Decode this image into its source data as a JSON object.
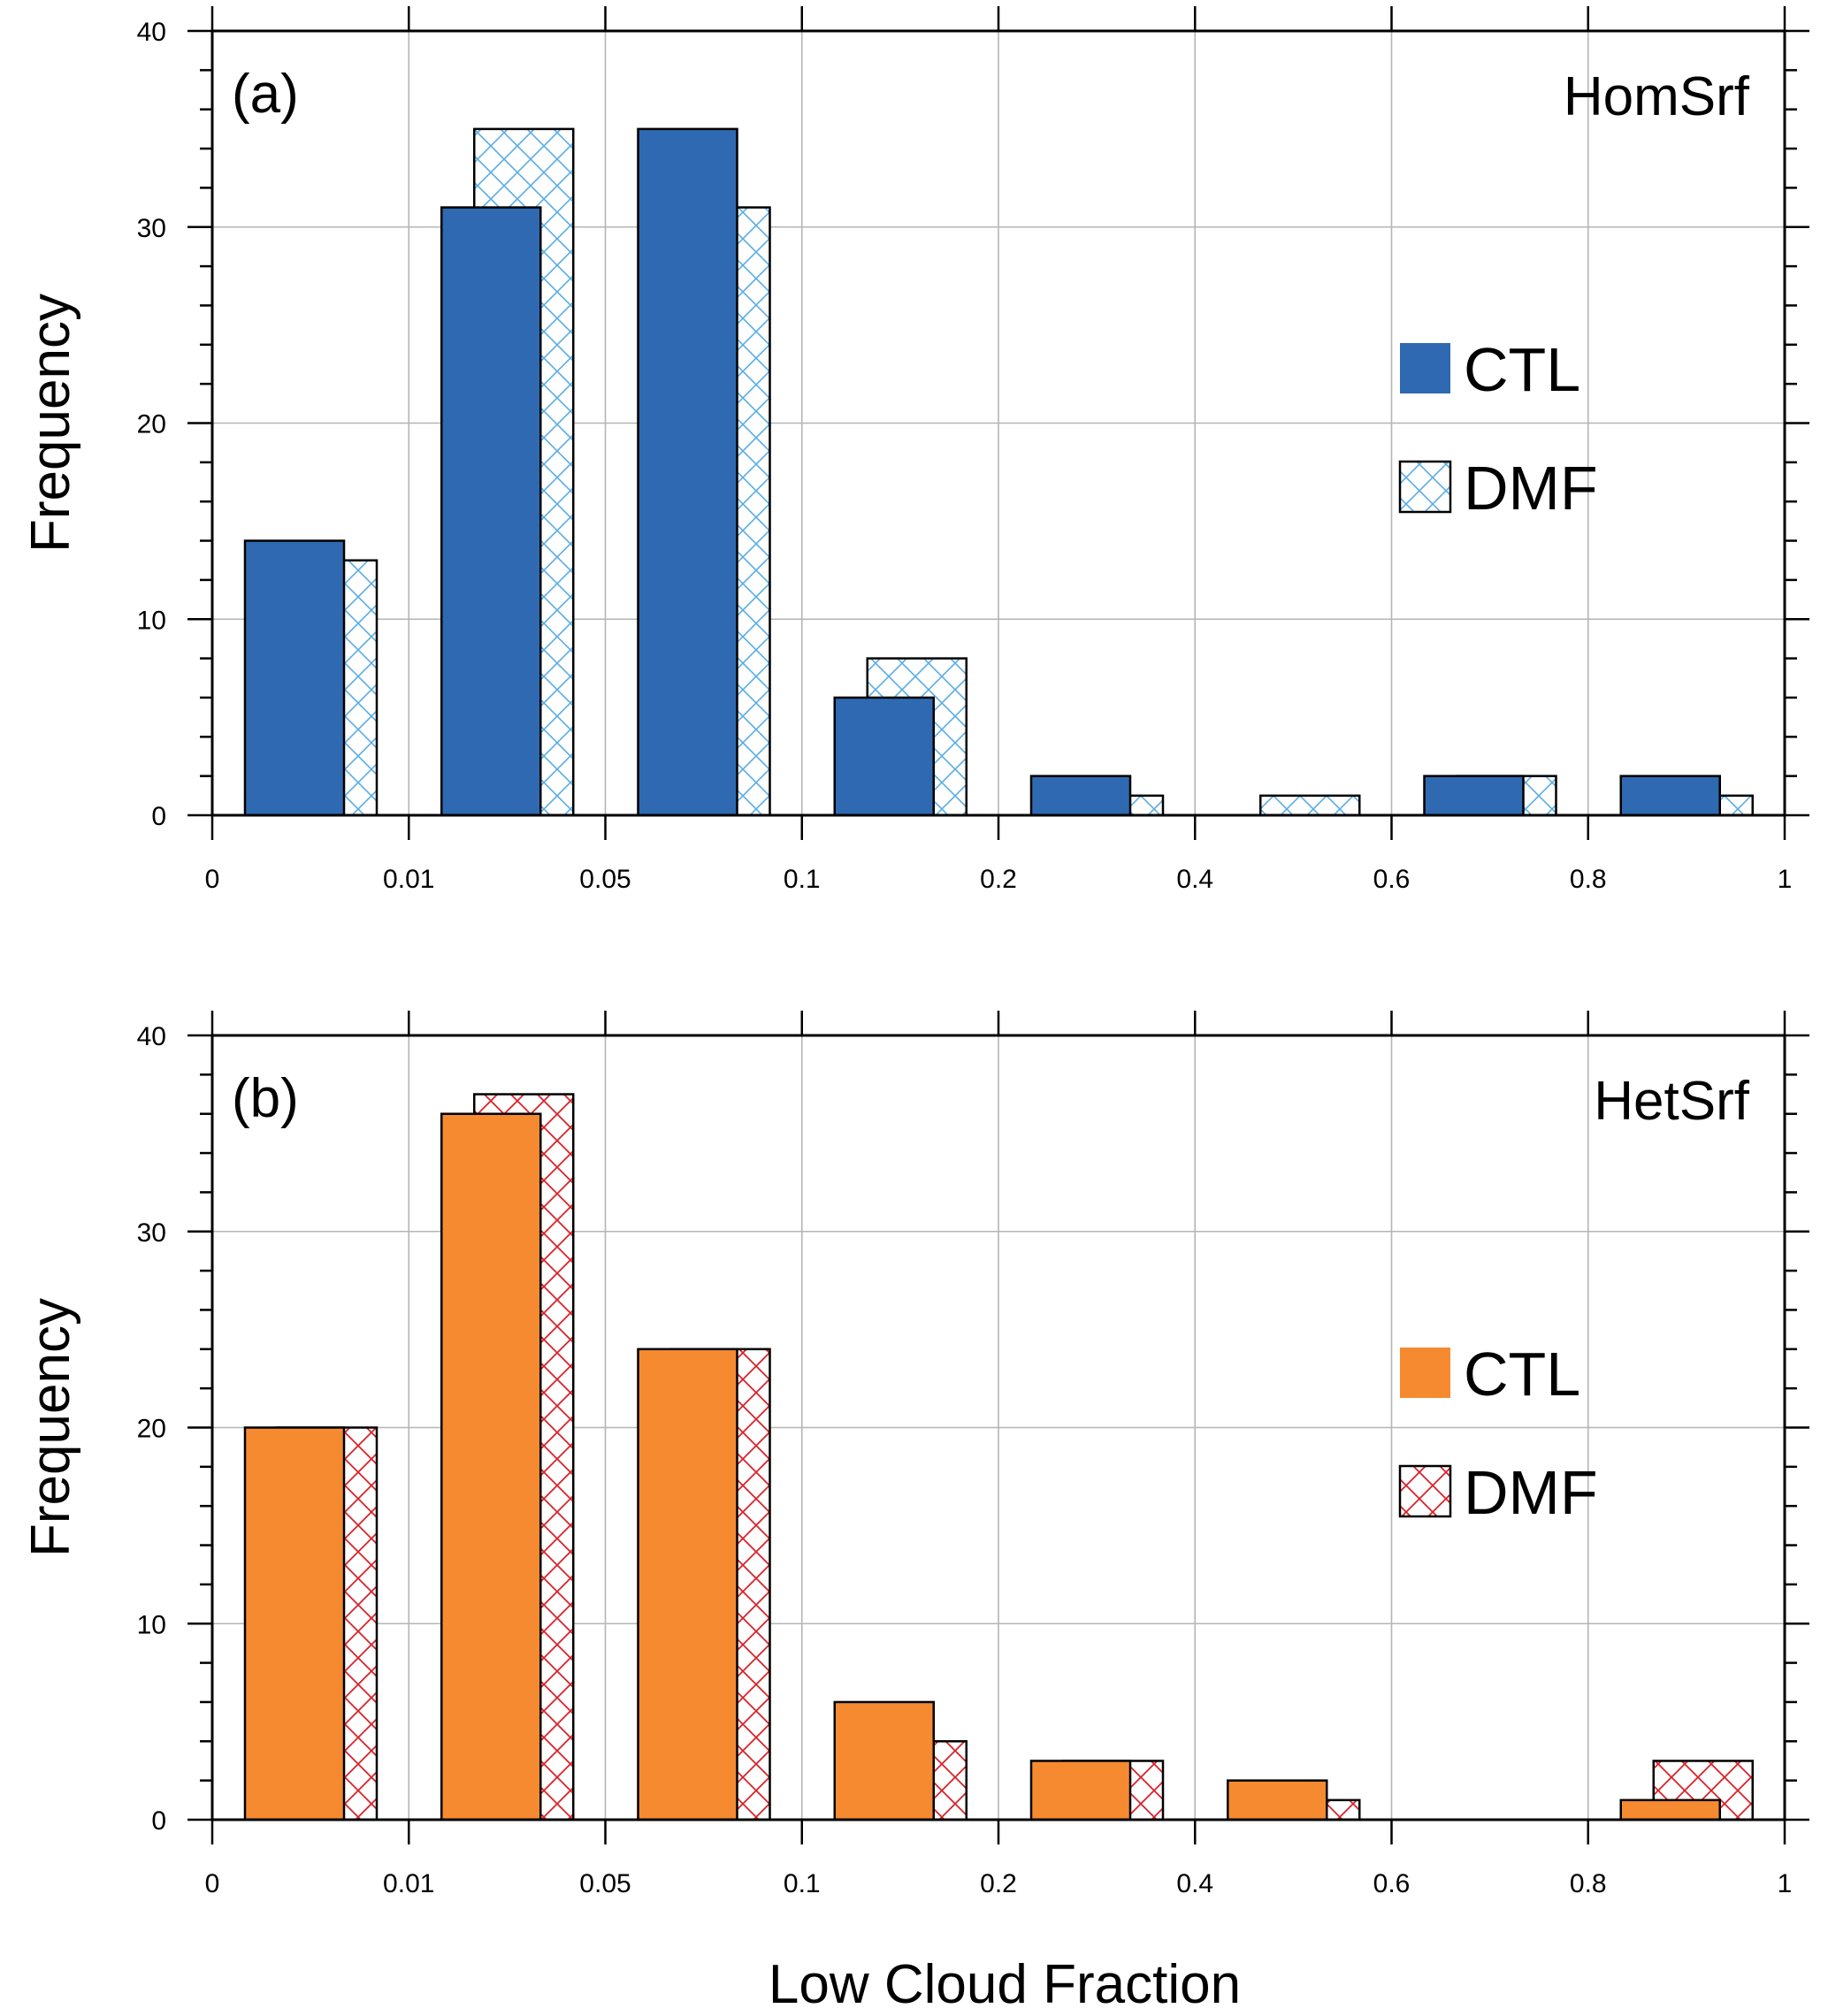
{
  "figure": {
    "xlabel": "Low Cloud Fraction"
  },
  "chart_data": [
    {
      "type": "bar",
      "panel_label": "(a)",
      "case_label": "HomSrf",
      "ylabel": "Frequency",
      "xlabel": "Low Cloud Fraction",
      "x_tick_labels": [
        "0",
        "0.01",
        "0.05",
        "0.1",
        "0.2",
        "0.4",
        "0.6",
        "0.8",
        "1"
      ],
      "y_tick_labels": [
        "0",
        "10",
        "20",
        "30",
        "40"
      ],
      "ylim": [
        0,
        40
      ],
      "grid": true,
      "legend_position": "right",
      "categories": [
        "0-0.01",
        "0.01-0.05",
        "0.05-0.1",
        "0.1-0.2",
        "0.2-0.4",
        "0.4-0.6",
        "0.6-0.8",
        "0.8-1"
      ],
      "series": [
        {
          "name": "CTL",
          "style": "solid",
          "color": "#2F69B1",
          "values": [
            14,
            31,
            35,
            6,
            2,
            0,
            2,
            2
          ]
        },
        {
          "name": "DMF",
          "style": "hatched",
          "color": "#5AADE3",
          "values": [
            13,
            35,
            31,
            8,
            1,
            1,
            2,
            1
          ]
        }
      ]
    },
    {
      "type": "bar",
      "panel_label": "(b)",
      "case_label": "HetSrf",
      "ylabel": "Frequency",
      "xlabel": "Low Cloud Fraction",
      "x_tick_labels": [
        "0",
        "0.01",
        "0.05",
        "0.1",
        "0.2",
        "0.4",
        "0.6",
        "0.8",
        "1"
      ],
      "y_tick_labels": [
        "0",
        "10",
        "20",
        "30",
        "40"
      ],
      "ylim": [
        0,
        40
      ],
      "grid": true,
      "legend_position": "right",
      "categories": [
        "0-0.01",
        "0.01-0.05",
        "0.05-0.1",
        "0.1-0.2",
        "0.2-0.4",
        "0.4-0.6",
        "0.6-0.8",
        "0.8-1"
      ],
      "series": [
        {
          "name": "CTL",
          "style": "solid",
          "color": "#F68A30",
          "values": [
            20,
            36,
            24,
            6,
            3,
            2,
            0,
            1
          ]
        },
        {
          "name": "DMF",
          "style": "hatched",
          "color": "#D8232A",
          "values": [
            20,
            37,
            24,
            4,
            3,
            1,
            0,
            3
          ]
        }
      ]
    }
  ]
}
